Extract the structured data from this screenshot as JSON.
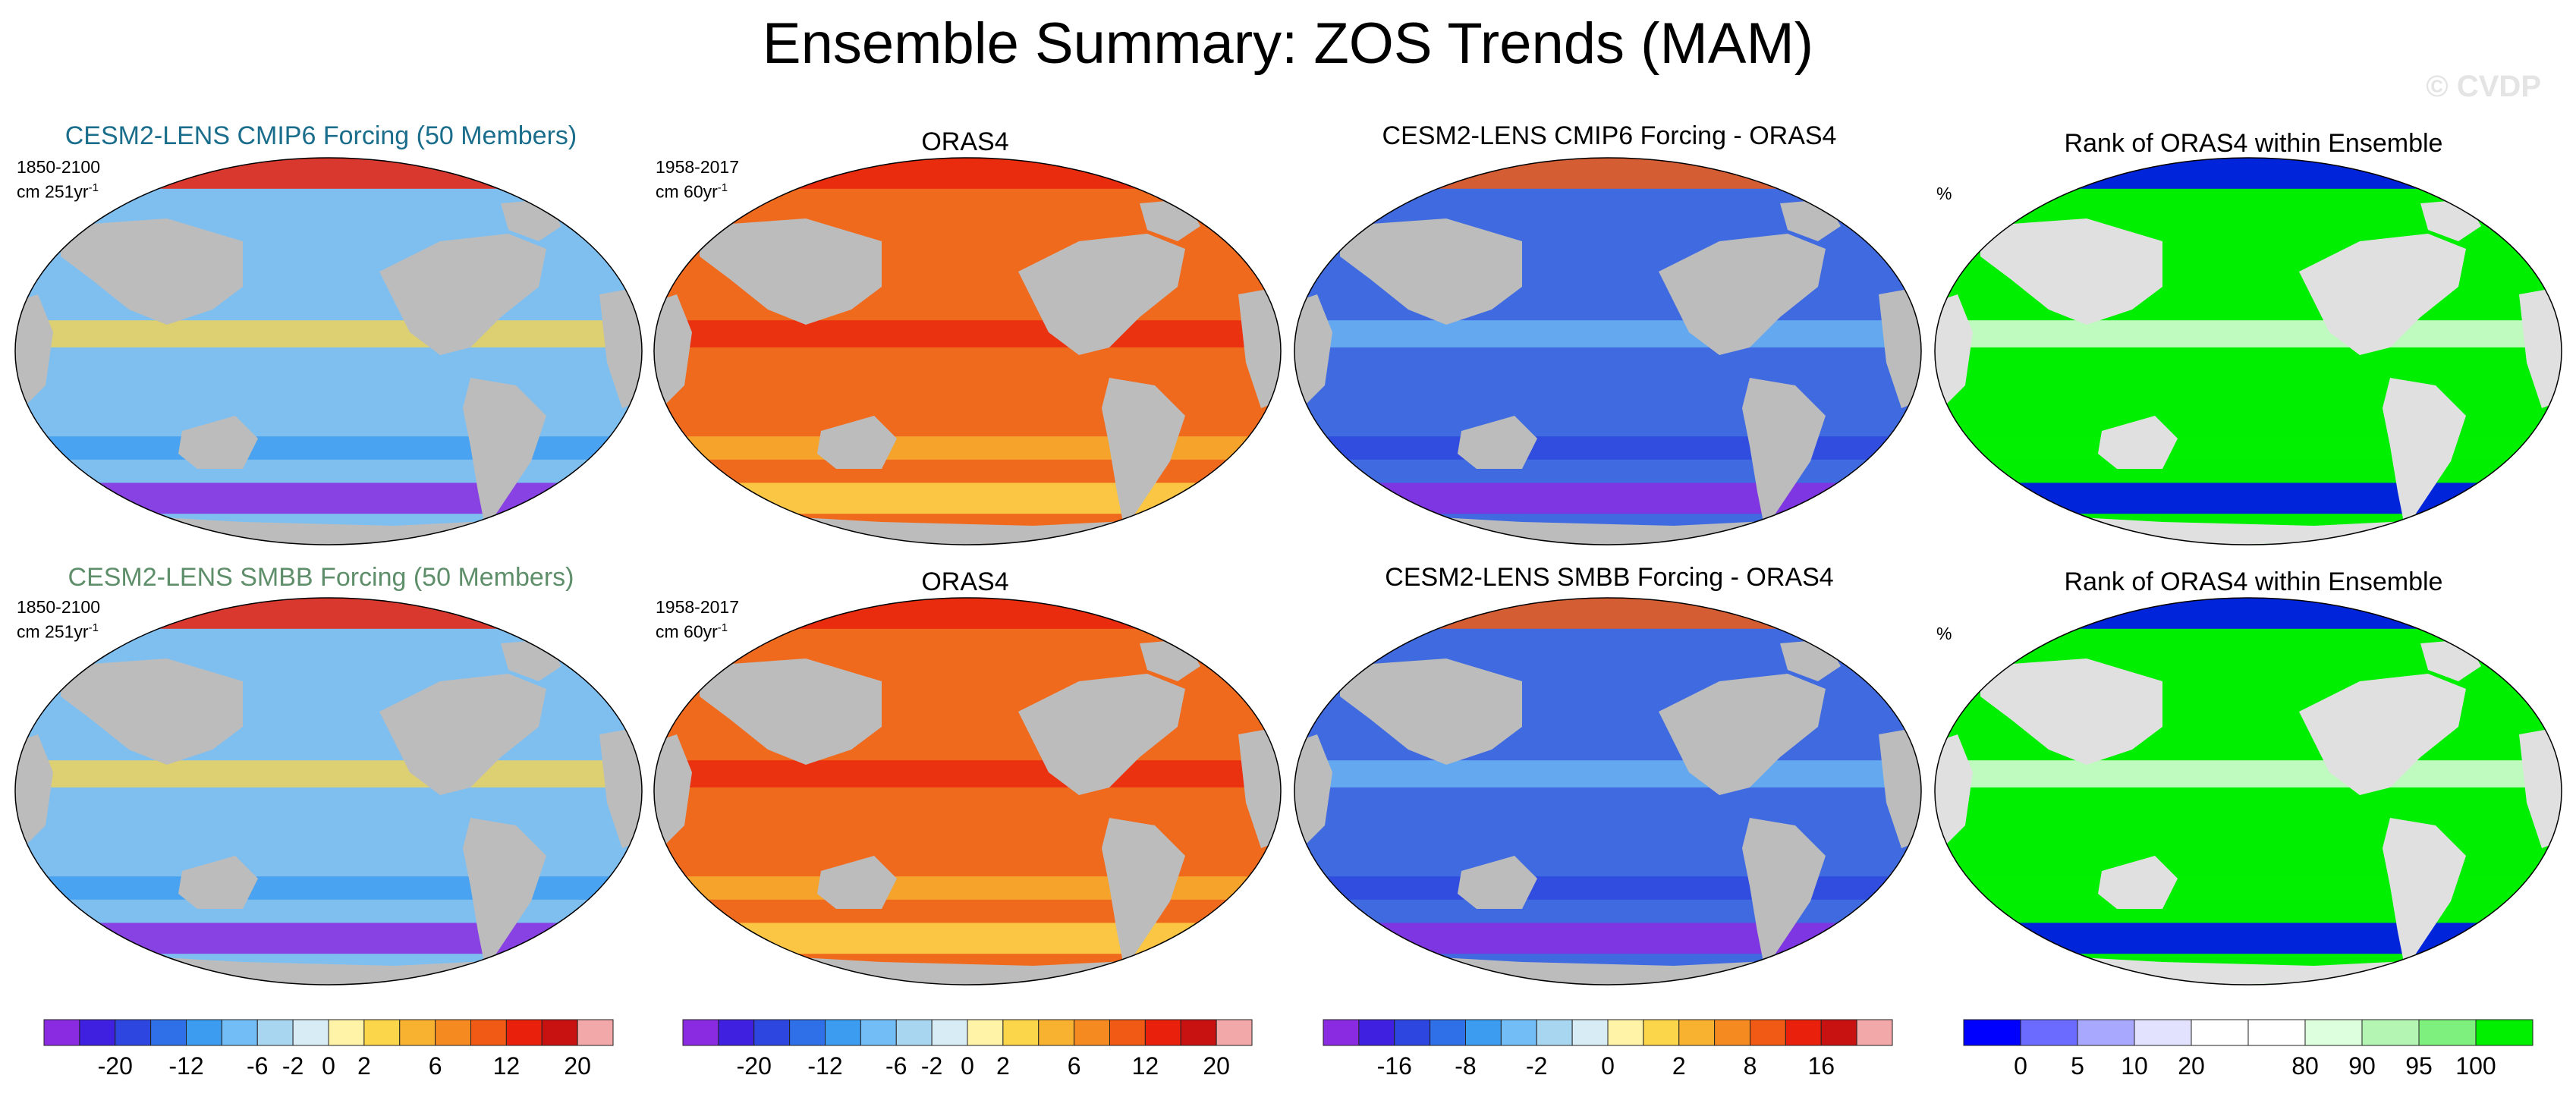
{
  "title": "Ensemble Summary: ZOS Trends (MAM)",
  "watermark": "© CVDP",
  "colors": {
    "diverging": [
      "#8a2be2",
      "#3f1fe0",
      "#2d46e0",
      "#2f6fe8",
      "#3c9cf0",
      "#72bdf5",
      "#a8d6f0",
      "#d8ecf5",
      "#fff3a8",
      "#fbd64a",
      "#f8b230",
      "#f58a20",
      "#f05a14",
      "#e8200c",
      "#c81212",
      "#f2a7a8"
    ],
    "rank": [
      "#0000ff",
      "#6b6bff",
      "#a8a8ff",
      "#e2e2ff",
      "#ffffff",
      "#ffffff",
      "#ddffdd",
      "#b4f5b4",
      "#7ef07e",
      "#00f000"
    ],
    "ocean_ensemble": "#7fbff0",
    "ocean_orass4": "#f06a1e",
    "ocean_diff": "#3f6ae0",
    "ocean_rank": "#00ee00",
    "land": "#bcbcbc",
    "rank_land": "#e0e0e0",
    "cmip6_title": "#1a6e8c",
    "smbb_title": "#5e8f6a"
  },
  "rows": [
    {
      "panels": [
        {
          "title": "CESM2-LENS CMIP6 Forcing (50 Members)",
          "period": "1850-2100",
          "units": "cm 251yr",
          "units_sup": "-1"
        },
        {
          "title": "ORAS4",
          "period": "1958-2017",
          "units": "cm 60yr",
          "units_sup": "-1"
        },
        {
          "title": "CESM2-LENS CMIP6 Forcing - ORAS4"
        },
        {
          "title": "Rank of ORAS4 within Ensemble",
          "unit_label": "%"
        }
      ]
    },
    {
      "panels": [
        {
          "title": "CESM2-LENS SMBB Forcing (50 Members)",
          "period": "1850-2100",
          "units": "cm 251yr",
          "units_sup": "-1"
        },
        {
          "title": "ORAS4",
          "period": "1958-2017",
          "units": "cm 60yr",
          "units_sup": "-1"
        },
        {
          "title": "CESM2-LENS SMBB Forcing - ORAS4"
        },
        {
          "title": "Rank of ORAS4 within Ensemble",
          "unit_label": "%"
        }
      ]
    }
  ],
  "chart_data": [
    {
      "type": "heatmap",
      "title": "CESM2-LENS CMIP6 Forcing (50 Members)",
      "period": "1850-2100",
      "units": "cm 251yr-1",
      "colorbar_ticks": [
        "-20",
        "-12",
        "-6",
        "-2",
        "0",
        "2",
        "6",
        "12",
        "20"
      ]
    },
    {
      "type": "heatmap",
      "title": "ORAS4",
      "period": "1958-2017",
      "units": "cm 60yr-1",
      "colorbar_ticks": [
        "-20",
        "-12",
        "-6",
        "-2",
        "0",
        "2",
        "6",
        "12",
        "20"
      ]
    },
    {
      "type": "heatmap",
      "title": "CESM2-LENS CMIP6 Forcing - ORAS4",
      "colorbar_ticks": [
        "-16",
        "-8",
        "-2",
        "0",
        "2",
        "8",
        "16"
      ]
    },
    {
      "type": "heatmap",
      "title": "Rank of ORAS4 within Ensemble",
      "units": "%",
      "colorbar_ticks": [
        "0",
        "5",
        "10",
        "20",
        "80",
        "90",
        "95",
        "100"
      ]
    },
    {
      "type": "heatmap",
      "title": "CESM2-LENS SMBB Forcing (50 Members)",
      "period": "1850-2100",
      "units": "cm 251yr-1",
      "colorbar_ticks": [
        "-20",
        "-12",
        "-6",
        "-2",
        "0",
        "2",
        "6",
        "12",
        "20"
      ]
    },
    {
      "type": "heatmap",
      "title": "ORAS4",
      "period": "1958-2017",
      "units": "cm 60yr-1",
      "colorbar_ticks": [
        "-20",
        "-12",
        "-6",
        "-2",
        "0",
        "2",
        "6",
        "12",
        "20"
      ]
    },
    {
      "type": "heatmap",
      "title": "CESM2-LENS SMBB Forcing - ORAS4",
      "colorbar_ticks": [
        "-16",
        "-8",
        "-2",
        "0",
        "2",
        "8",
        "16"
      ]
    },
    {
      "type": "heatmap",
      "title": "Rank of ORAS4 within Ensemble",
      "units": "%",
      "colorbar_ticks": [
        "0",
        "5",
        "10",
        "20",
        "80",
        "90",
        "95",
        "100"
      ]
    }
  ],
  "colorbars": [
    {
      "name": "ensemble",
      "boxes": 16,
      "ticks": [
        "-20",
        "-12",
        "-6",
        "-2",
        "0",
        "2",
        "6",
        "12",
        "20"
      ],
      "tick_boundaries": [
        2,
        4,
        6,
        7,
        8,
        9,
        11,
        13,
        15
      ]
    },
    {
      "name": "orass4",
      "boxes": 16,
      "ticks": [
        "-20",
        "-12",
        "-6",
        "-2",
        "0",
        "2",
        "6",
        "12",
        "20"
      ],
      "tick_boundaries": [
        2,
        4,
        6,
        7,
        8,
        9,
        11,
        13,
        15
      ]
    },
    {
      "name": "difference",
      "boxes": 16,
      "ticks": [
        "-16",
        "-8",
        "-2",
        "0",
        "2",
        "8",
        "16"
      ],
      "tick_boundaries": [
        2,
        4,
        6,
        8,
        10,
        12,
        14
      ]
    },
    {
      "name": "rank",
      "boxes": 10,
      "ticks": [
        "0",
        "5",
        "10",
        "20",
        "80",
        "90",
        "95",
        "100"
      ],
      "tick_boundaries": [
        1,
        2,
        3,
        4,
        6,
        7,
        8,
        9
      ]
    }
  ]
}
